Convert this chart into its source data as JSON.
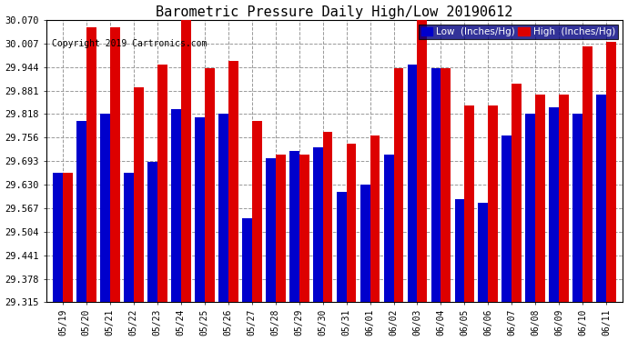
{
  "title": "Barometric Pressure Daily High/Low 20190612",
  "copyright": "Copyright 2019 Cartronics.com",
  "dates": [
    "05/19",
    "05/20",
    "05/21",
    "05/22",
    "05/23",
    "05/24",
    "05/25",
    "05/26",
    "05/27",
    "05/28",
    "05/29",
    "05/30",
    "05/31",
    "06/01",
    "06/02",
    "06/03",
    "06/04",
    "06/05",
    "06/06",
    "06/07",
    "06/08",
    "06/09",
    "06/10",
    "06/11"
  ],
  "low_values": [
    29.66,
    29.8,
    29.82,
    29.66,
    29.69,
    29.83,
    29.81,
    29.82,
    29.54,
    29.7,
    29.72,
    29.73,
    29.61,
    29.63,
    29.71,
    29.95,
    29.94,
    29.59,
    29.58,
    29.76,
    29.82,
    29.835,
    29.82,
    29.87
  ],
  "high_values": [
    29.66,
    30.05,
    30.05,
    29.89,
    29.95,
    30.07,
    29.94,
    29.96,
    29.8,
    29.71,
    29.71,
    29.77,
    29.74,
    29.76,
    29.94,
    30.07,
    29.94,
    29.84,
    29.84,
    29.9,
    29.87,
    29.87,
    30.0,
    30.01
  ],
  "ylim_min": 29.315,
  "ylim_max": 30.07,
  "yticks": [
    29.315,
    29.378,
    29.441,
    29.504,
    29.567,
    29.63,
    29.693,
    29.756,
    29.818,
    29.881,
    29.944,
    30.007,
    30.07
  ],
  "low_color": "#0000cc",
  "high_color": "#dd0000",
  "bg_color": "#ffffff",
  "grid_color": "#999999",
  "title_fontsize": 11,
  "copyright_fontsize": 7
}
